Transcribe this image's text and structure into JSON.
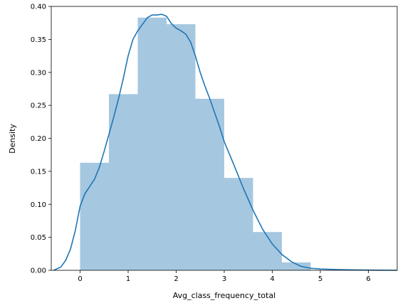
{
  "chart_data": {
    "type": "bar",
    "title": "",
    "xlabel": "Avg_class_frequency_total",
    "ylabel": "Density",
    "xlim": [
      -0.6,
      6.6
    ],
    "ylim": [
      0.0,
      0.4
    ],
    "x_ticks": [
      0,
      1,
      2,
      3,
      4,
      5,
      6
    ],
    "y_ticks": [
      0.0,
      0.05,
      0.1,
      0.15,
      0.2,
      0.25,
      0.3,
      0.35,
      0.4
    ],
    "x_tick_labels": [
      "0",
      "1",
      "2",
      "3",
      "4",
      "5",
      "6"
    ],
    "y_tick_labels": [
      "0.00",
      "0.05",
      "0.10",
      "0.15",
      "0.20",
      "0.25",
      "0.30",
      "0.35",
      "0.40"
    ],
    "grid": false,
    "histogram": {
      "bin_edges": [
        0.0,
        0.6,
        1.2,
        1.8,
        2.4,
        3.0,
        3.6,
        4.2,
        4.8
      ],
      "density": [
        0.163,
        0.267,
        0.383,
        0.373,
        0.26,
        0.14,
        0.058,
        0.012
      ],
      "color": "#a6c7e0"
    },
    "kde": {
      "x": [
        -0.55,
        -0.4,
        -0.3,
        -0.2,
        -0.1,
        0.0,
        0.1,
        0.2,
        0.3,
        0.4,
        0.5,
        0.6,
        0.7,
        0.8,
        0.9,
        1.0,
        1.1,
        1.2,
        1.3,
        1.4,
        1.5,
        1.6,
        1.7,
        1.8,
        1.9,
        2.0,
        2.1,
        2.2,
        2.3,
        2.4,
        2.5,
        2.6,
        2.7,
        2.8,
        2.9,
        3.0,
        3.2,
        3.4,
        3.6,
        3.8,
        4.0,
        4.2,
        4.4,
        4.6,
        4.8,
        5.0,
        5.4,
        5.8,
        6.2,
        6.6
      ],
      "y": [
        0.0,
        0.005,
        0.015,
        0.032,
        0.06,
        0.097,
        0.116,
        0.127,
        0.138,
        0.156,
        0.18,
        0.206,
        0.232,
        0.26,
        0.291,
        0.325,
        0.35,
        0.363,
        0.373,
        0.383,
        0.387,
        0.387,
        0.388,
        0.385,
        0.374,
        0.367,
        0.363,
        0.358,
        0.346,
        0.325,
        0.3,
        0.279,
        0.26,
        0.239,
        0.218,
        0.195,
        0.16,
        0.124,
        0.091,
        0.062,
        0.04,
        0.024,
        0.013,
        0.006,
        0.003,
        0.002,
        0.001,
        0.0005,
        0.0002,
        0.0
      ],
      "color": "#1f77b4"
    }
  }
}
